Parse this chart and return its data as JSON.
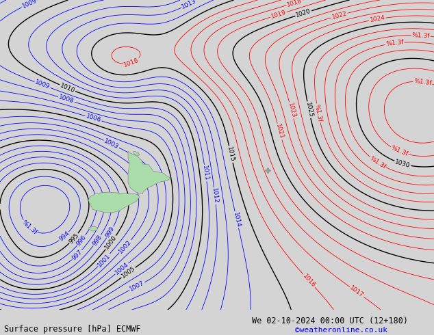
{
  "title_left": "Surface pressure [hPa] ECMWF",
  "title_right": "We 02-10-2024 00:00 UTC (12+180)",
  "credit": "©weatheronline.co.uk",
  "bg_color": "#d4d4d4",
  "land_color": "#aaddaa",
  "contour_color_blue": "#0000ff",
  "contour_color_red": "#ff0000",
  "contour_color_black": "#000000",
  "label_fontsize": 6.5,
  "title_fontsize": 8.5,
  "credit_fontsize": 8,
  "star_color": "#999999",
  "star_lon": 192,
  "star_lat": -37.5,
  "lon_min": 155,
  "lon_max": 215,
  "lat_min": -60,
  "lat_max": -10
}
